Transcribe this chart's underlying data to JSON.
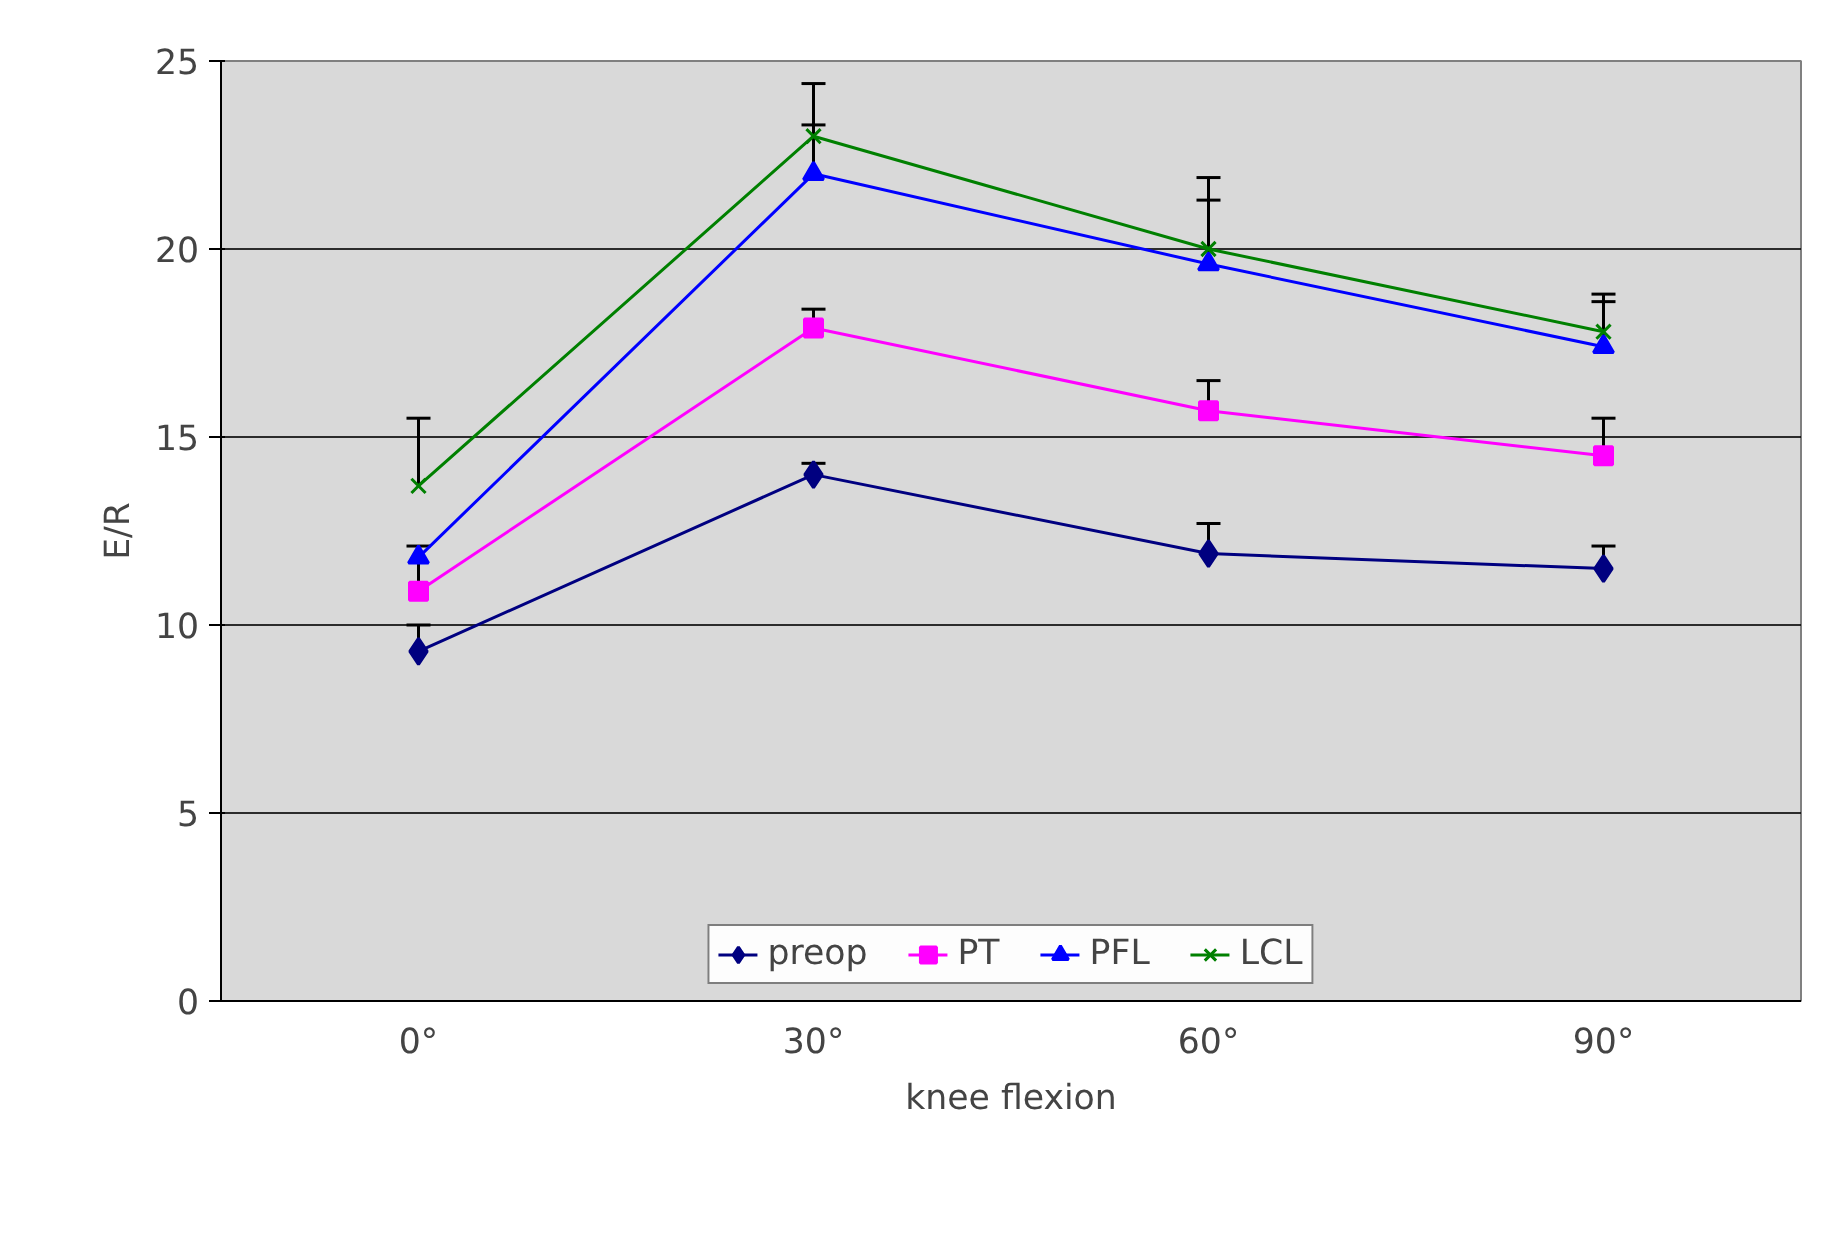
{
  "chart_data": {
    "type": "line",
    "xlabel": "knee flexion",
    "ylabel": "E/R",
    "categories": [
      "0°",
      "30°",
      "60°",
      "90°"
    ],
    "ylim": [
      0,
      25
    ],
    "yticks": [
      0,
      5,
      10,
      15,
      20,
      25
    ],
    "grid": "y",
    "legend": "bottom",
    "series": [
      {
        "name": "preop",
        "color": "#000080",
        "marker": "diamond",
        "values": [
          9.3,
          14.0,
          11.9,
          11.5
        ],
        "errors": [
          [
            9.3,
            10.0
          ],
          [
            14.0,
            14.3
          ],
          [
            11.9,
            12.7
          ],
          [
            11.5,
            12.1
          ]
        ]
      },
      {
        "name": "PT",
        "color": "#ff00ff",
        "marker": "square",
        "values": [
          10.9,
          17.9,
          15.7,
          14.5
        ],
        "errors": [
          [
            10.9,
            12.1
          ],
          [
            17.9,
            18.4
          ],
          [
            15.7,
            16.5
          ],
          [
            14.5,
            15.5
          ]
        ]
      },
      {
        "name": "PFL",
        "color": "#0000ff",
        "marker": "triangle",
        "values": [
          11.8,
          22.0,
          19.6,
          17.4
        ],
        "errors": [
          null,
          [
            22.0,
            23.3
          ],
          [
            19.6,
            21.3
          ],
          [
            17.4,
            18.6
          ]
        ]
      },
      {
        "name": "LCL",
        "color": "#008000",
        "marker": "cross",
        "values": [
          13.7,
          23.0,
          20.0,
          17.8
        ],
        "errors": [
          [
            13.7,
            15.5
          ],
          [
            23.0,
            24.4
          ],
          [
            20.0,
            21.9
          ],
          [
            17.8,
            18.8
          ]
        ]
      }
    ]
  }
}
